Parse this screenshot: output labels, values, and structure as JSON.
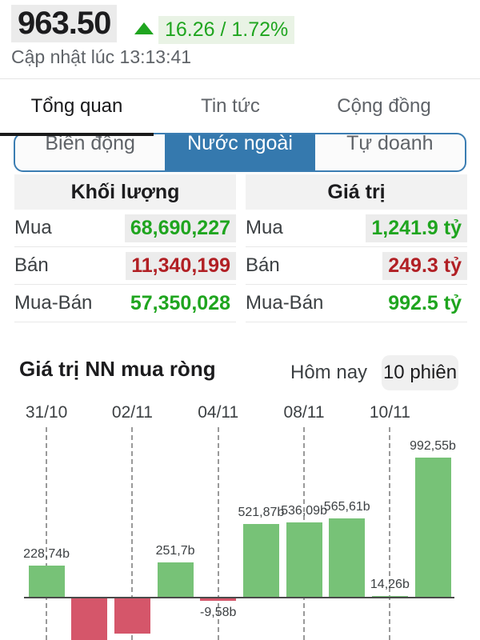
{
  "header": {
    "index_value": "963.50",
    "change_value": "16.26 / 1.72%",
    "updated": "Cập nhật lúc 13:13:41"
  },
  "tabs": {
    "active_index": 0,
    "items": [
      "Tổng quan",
      "Tin tức",
      "Cộng đồng"
    ]
  },
  "segments": {
    "active_index": 1,
    "items": [
      "Biến động",
      "Nước ngoài",
      "Tự doanh"
    ]
  },
  "summary": {
    "volume": {
      "title": "Khối lượng",
      "rows": [
        {
          "label": "Mua",
          "value": "68,690,227",
          "direction": "up",
          "highlight": true
        },
        {
          "label": "Bán",
          "value": "11,340,199",
          "direction": "down",
          "highlight": true
        },
        {
          "label": "Mua-Bán",
          "value": "57,350,028",
          "direction": "up",
          "highlight": false
        }
      ]
    },
    "value": {
      "title": "Giá trị",
      "rows": [
        {
          "label": "Mua",
          "value": "1,241.9 tỷ",
          "direction": "up",
          "highlight": true
        },
        {
          "label": "Bán",
          "value": "249.3 tỷ",
          "direction": "down",
          "highlight": true
        },
        {
          "label": "Mua-Bán",
          "value": "992.5 tỷ",
          "direction": "up",
          "highlight": false
        }
      ]
    }
  },
  "chart_section": {
    "title": "Giá trị NN mua ròng",
    "range_options": [
      {
        "label": "Hôm nay",
        "active": false
      },
      {
        "label": "10 phiên",
        "active": true
      }
    ]
  },
  "chart_data": {
    "type": "bar",
    "title": "Giá trị NN mua ròng",
    "values": [
      228.74,
      -330,
      -248,
      251.7,
      -9.58,
      521.87,
      536.09,
      565.61,
      14.26,
      992.55
    ],
    "bar_labels": [
      "228,74b",
      null,
      null,
      "251,7b",
      "-9,58b",
      "521,87b",
      "536,09b",
      "565,61b",
      "14,26b",
      "992,55b"
    ],
    "x_tick_labels": [
      "31/10",
      "02/11",
      "04/11",
      "08/11",
      "10/11"
    ],
    "x_tick_bar_indices": [
      0,
      2,
      4,
      6,
      8
    ],
    "ylim": [
      -350,
      1050
    ],
    "grid": "dashed-vertical",
    "legend": "none"
  },
  "colors": {
    "up_text": "#1fa51f",
    "down_text": "#b11f24",
    "bar_up": "#77c277",
    "bar_down": "#d5566a",
    "accent_blue": "#3579ae",
    "highlight_bg": "#ececec"
  }
}
